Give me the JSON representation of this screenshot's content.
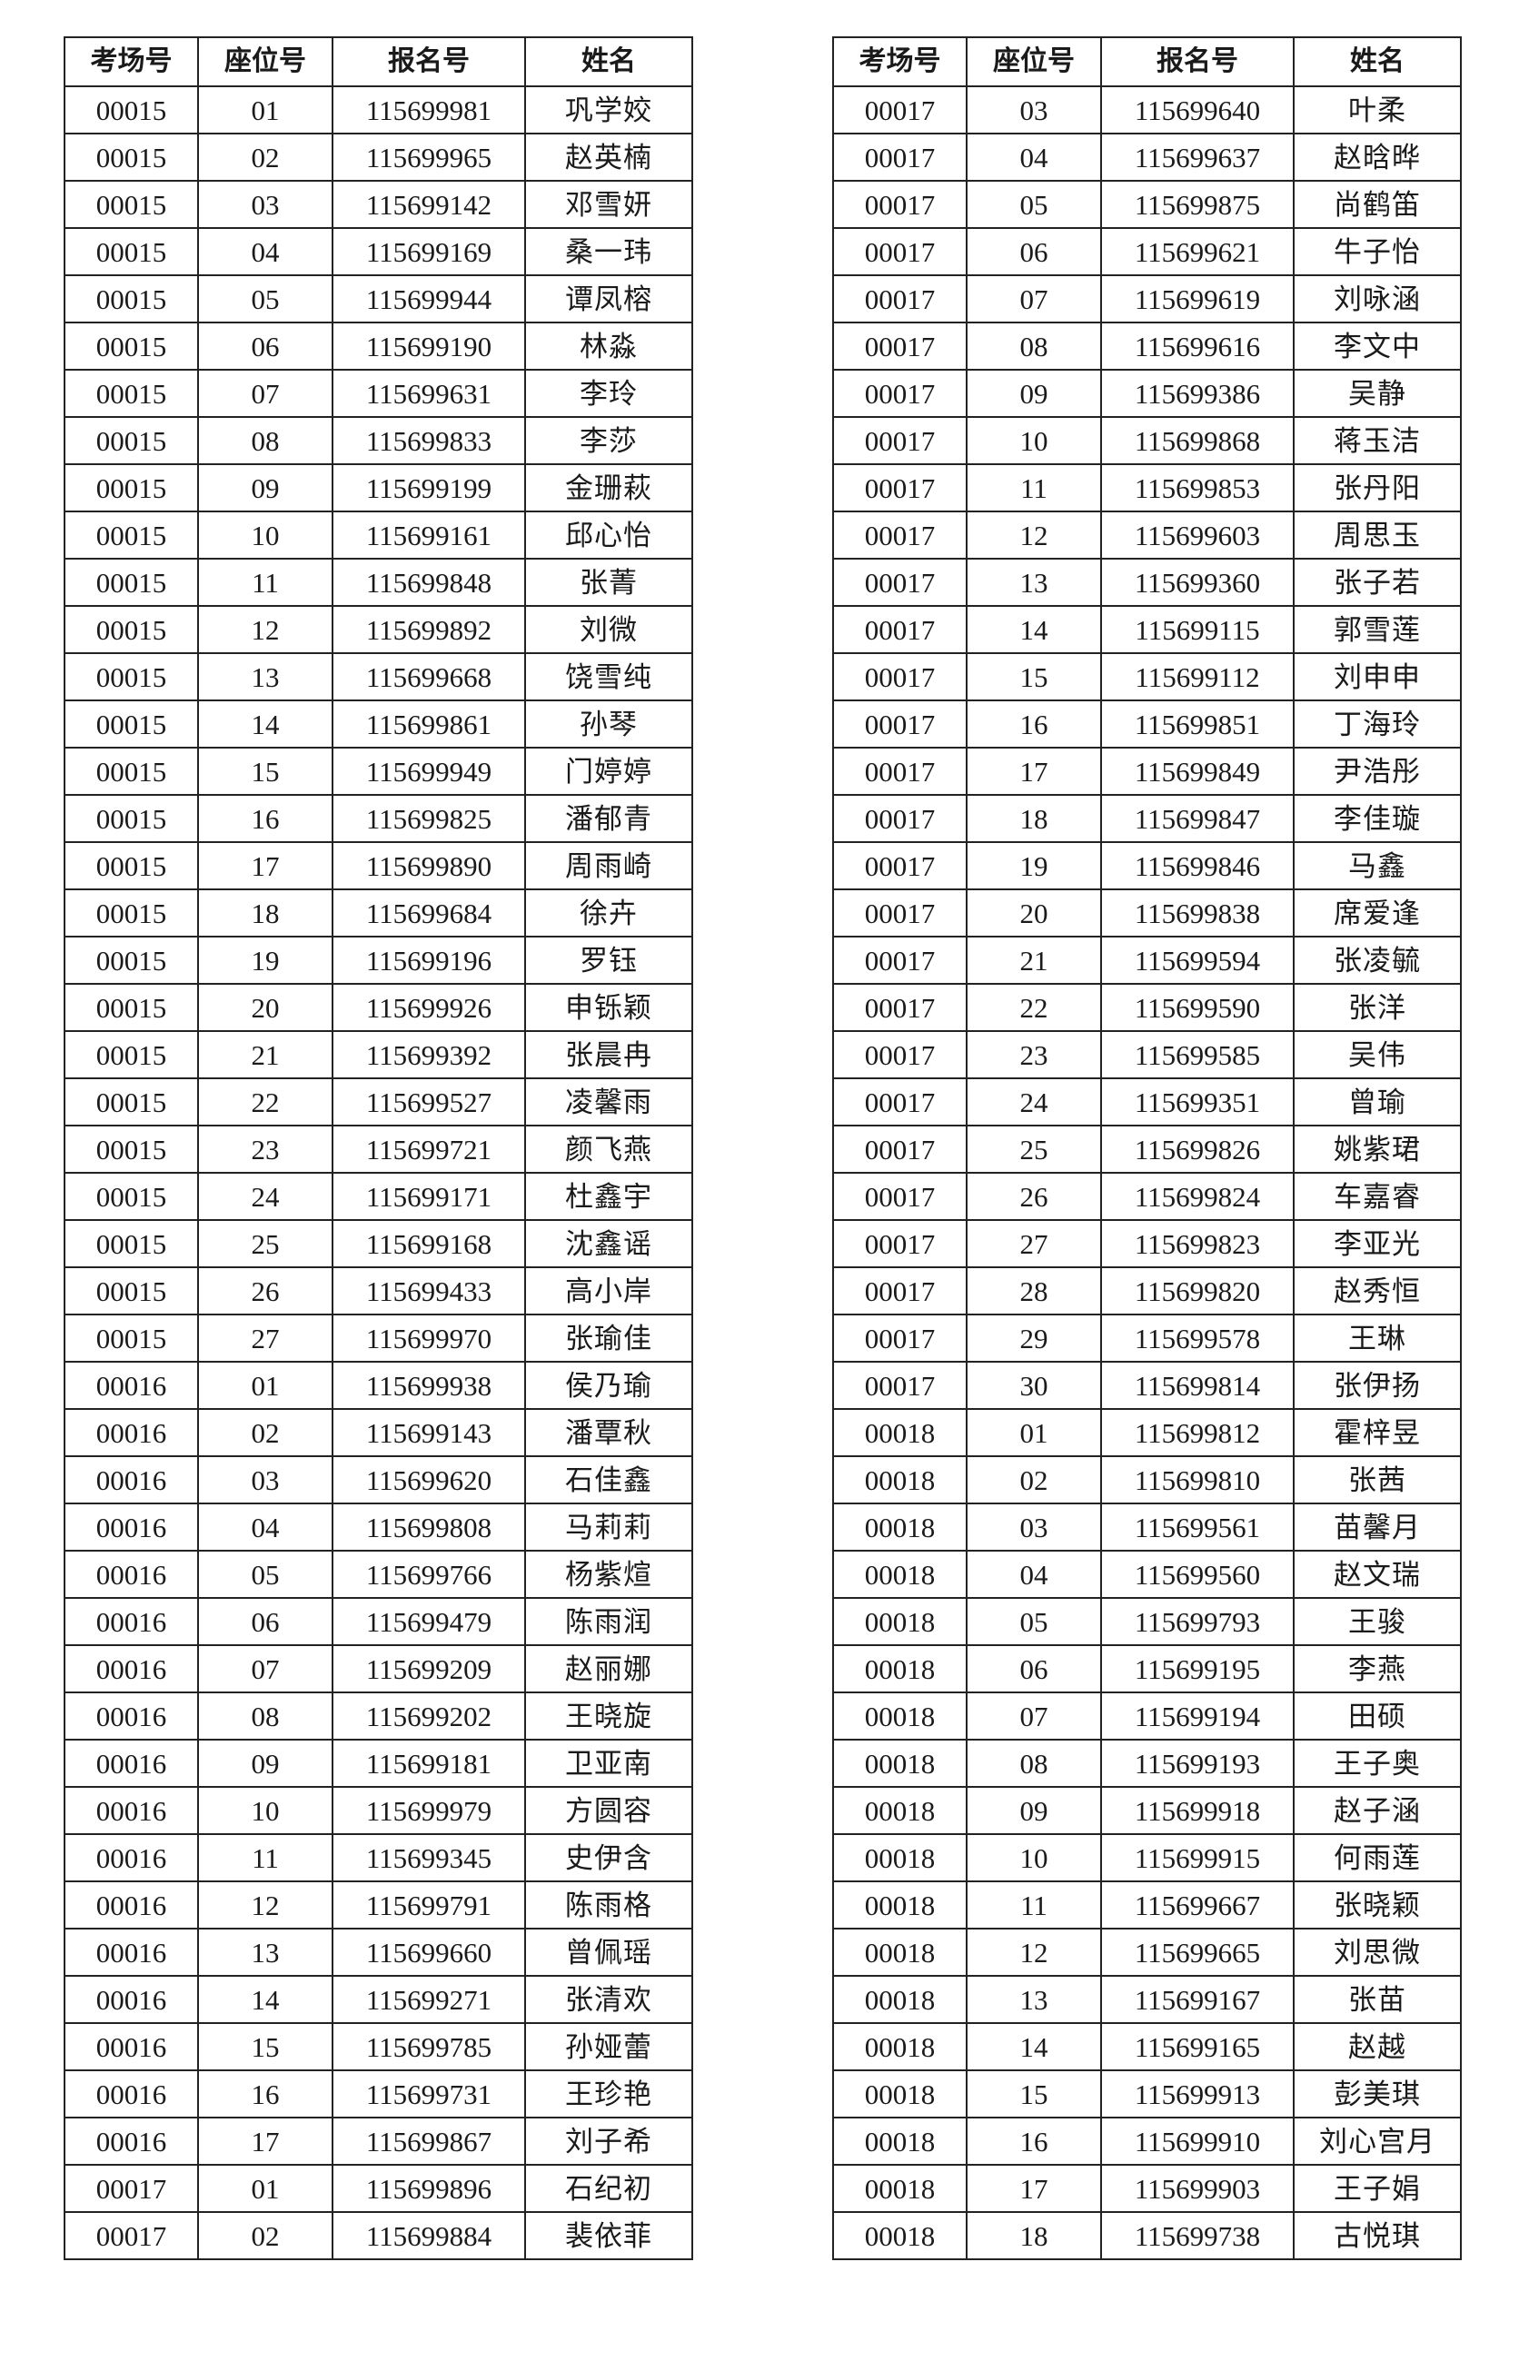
{
  "headers": [
    "考场号",
    "座位号",
    "报名号",
    "姓名"
  ],
  "left_table": {
    "rows": [
      [
        "00015",
        "01",
        "115699981",
        "巩学姣"
      ],
      [
        "00015",
        "02",
        "115699965",
        "赵英楠"
      ],
      [
        "00015",
        "03",
        "115699142",
        "邓雪妍"
      ],
      [
        "00015",
        "04",
        "115699169",
        "桑一玮"
      ],
      [
        "00015",
        "05",
        "115699944",
        "谭凤榕"
      ],
      [
        "00015",
        "06",
        "115699190",
        "林淼"
      ],
      [
        "00015",
        "07",
        "115699631",
        "李玲"
      ],
      [
        "00015",
        "08",
        "115699833",
        "李莎"
      ],
      [
        "00015",
        "09",
        "115699199",
        "金珊萩"
      ],
      [
        "00015",
        "10",
        "115699161",
        "邱心怡"
      ],
      [
        "00015",
        "11",
        "115699848",
        "张菁"
      ],
      [
        "00015",
        "12",
        "115699892",
        "刘微"
      ],
      [
        "00015",
        "13",
        "115699668",
        "饶雪纯"
      ],
      [
        "00015",
        "14",
        "115699861",
        "孙琴"
      ],
      [
        "00015",
        "15",
        "115699949",
        "门婷婷"
      ],
      [
        "00015",
        "16",
        "115699825",
        "潘郁青"
      ],
      [
        "00015",
        "17",
        "115699890",
        "周雨崎"
      ],
      [
        "00015",
        "18",
        "115699684",
        "徐卉"
      ],
      [
        "00015",
        "19",
        "115699196",
        "罗钰"
      ],
      [
        "00015",
        "20",
        "115699926",
        "申铄颖"
      ],
      [
        "00015",
        "21",
        "115699392",
        "张晨冉"
      ],
      [
        "00015",
        "22",
        "115699527",
        "凌馨雨"
      ],
      [
        "00015",
        "23",
        "115699721",
        "颜飞燕"
      ],
      [
        "00015",
        "24",
        "115699171",
        "杜鑫宇"
      ],
      [
        "00015",
        "25",
        "115699168",
        "沈鑫谣"
      ],
      [
        "00015",
        "26",
        "115699433",
        "高小岸"
      ],
      [
        "00015",
        "27",
        "115699970",
        "张瑜佳"
      ],
      [
        "00016",
        "01",
        "115699938",
        "侯乃瑜"
      ],
      [
        "00016",
        "02",
        "115699143",
        "潘覃秋"
      ],
      [
        "00016",
        "03",
        "115699620",
        "石佳鑫"
      ],
      [
        "00016",
        "04",
        "115699808",
        "马莉莉"
      ],
      [
        "00016",
        "05",
        "115699766",
        "杨紫煊"
      ],
      [
        "00016",
        "06",
        "115699479",
        "陈雨润"
      ],
      [
        "00016",
        "07",
        "115699209",
        "赵丽娜"
      ],
      [
        "00016",
        "08",
        "115699202",
        "王晓旋"
      ],
      [
        "00016",
        "09",
        "115699181",
        "卫亚南"
      ],
      [
        "00016",
        "10",
        "115699979",
        "方圆容"
      ],
      [
        "00016",
        "11",
        "115699345",
        "史伊含"
      ],
      [
        "00016",
        "12",
        "115699791",
        "陈雨格"
      ],
      [
        "00016",
        "13",
        "115699660",
        "曾佩瑶"
      ],
      [
        "00016",
        "14",
        "115699271",
        "张清欢"
      ],
      [
        "00016",
        "15",
        "115699785",
        "孙娅蕾"
      ],
      [
        "00016",
        "16",
        "115699731",
        "王珍艳"
      ],
      [
        "00016",
        "17",
        "115699867",
        "刘子希"
      ],
      [
        "00017",
        "01",
        "115699896",
        "石纪初"
      ],
      [
        "00017",
        "02",
        "115699884",
        "裴依菲"
      ]
    ]
  },
  "right_table": {
    "rows": [
      [
        "00017",
        "03",
        "115699640",
        "叶柔"
      ],
      [
        "00017",
        "04",
        "115699637",
        "赵晗晔"
      ],
      [
        "00017",
        "05",
        "115699875",
        "尚鹤笛"
      ],
      [
        "00017",
        "06",
        "115699621",
        "牛子怡"
      ],
      [
        "00017",
        "07",
        "115699619",
        "刘咏涵"
      ],
      [
        "00017",
        "08",
        "115699616",
        "李文中"
      ],
      [
        "00017",
        "09",
        "115699386",
        "吴静"
      ],
      [
        "00017",
        "10",
        "115699868",
        "蒋玉洁"
      ],
      [
        "00017",
        "11",
        "115699853",
        "张丹阳"
      ],
      [
        "00017",
        "12",
        "115699603",
        "周思玉"
      ],
      [
        "00017",
        "13",
        "115699360",
        "张子若"
      ],
      [
        "00017",
        "14",
        "115699115",
        "郭雪莲"
      ],
      [
        "00017",
        "15",
        "115699112",
        "刘申申"
      ],
      [
        "00017",
        "16",
        "115699851",
        "丁海玲"
      ],
      [
        "00017",
        "17",
        "115699849",
        "尹浩彤"
      ],
      [
        "00017",
        "18",
        "115699847",
        "李佳璇"
      ],
      [
        "00017",
        "19",
        "115699846",
        "马鑫"
      ],
      [
        "00017",
        "20",
        "115699838",
        "席爱逢"
      ],
      [
        "00017",
        "21",
        "115699594",
        "张凌毓"
      ],
      [
        "00017",
        "22",
        "115699590",
        "张洋"
      ],
      [
        "00017",
        "23",
        "115699585",
        "吴伟"
      ],
      [
        "00017",
        "24",
        "115699351",
        "曾瑜"
      ],
      [
        "00017",
        "25",
        "115699826",
        "姚紫珺"
      ],
      [
        "00017",
        "26",
        "115699824",
        "车嘉睿"
      ],
      [
        "00017",
        "27",
        "115699823",
        "李亚光"
      ],
      [
        "00017",
        "28",
        "115699820",
        "赵秀恒"
      ],
      [
        "00017",
        "29",
        "115699578",
        "王琳"
      ],
      [
        "00017",
        "30",
        "115699814",
        "张伊扬"
      ],
      [
        "00018",
        "01",
        "115699812",
        "霍梓昱"
      ],
      [
        "00018",
        "02",
        "115699810",
        "张茜"
      ],
      [
        "00018",
        "03",
        "115699561",
        "苗馨月"
      ],
      [
        "00018",
        "04",
        "115699560",
        "赵文瑞"
      ],
      [
        "00018",
        "05",
        "115699793",
        "王骏"
      ],
      [
        "00018",
        "06",
        "115699195",
        "李燕"
      ],
      [
        "00018",
        "07",
        "115699194",
        "田硕"
      ],
      [
        "00018",
        "08",
        "115699193",
        "王子奥"
      ],
      [
        "00018",
        "09",
        "115699918",
        "赵子涵"
      ],
      [
        "00018",
        "10",
        "115699915",
        "何雨莲"
      ],
      [
        "00018",
        "11",
        "115699667",
        "张晓颖"
      ],
      [
        "00018",
        "12",
        "115699665",
        "刘思微"
      ],
      [
        "00018",
        "13",
        "115699167",
        "张苗"
      ],
      [
        "00018",
        "14",
        "115699165",
        "赵越"
      ],
      [
        "00018",
        "15",
        "115699913",
        "彭美琪"
      ],
      [
        "00018",
        "16",
        "115699910",
        "刘心宫月"
      ],
      [
        "00018",
        "17",
        "115699903",
        "王子娟"
      ],
      [
        "00018",
        "18",
        "115699738",
        "古悦琪"
      ]
    ]
  }
}
